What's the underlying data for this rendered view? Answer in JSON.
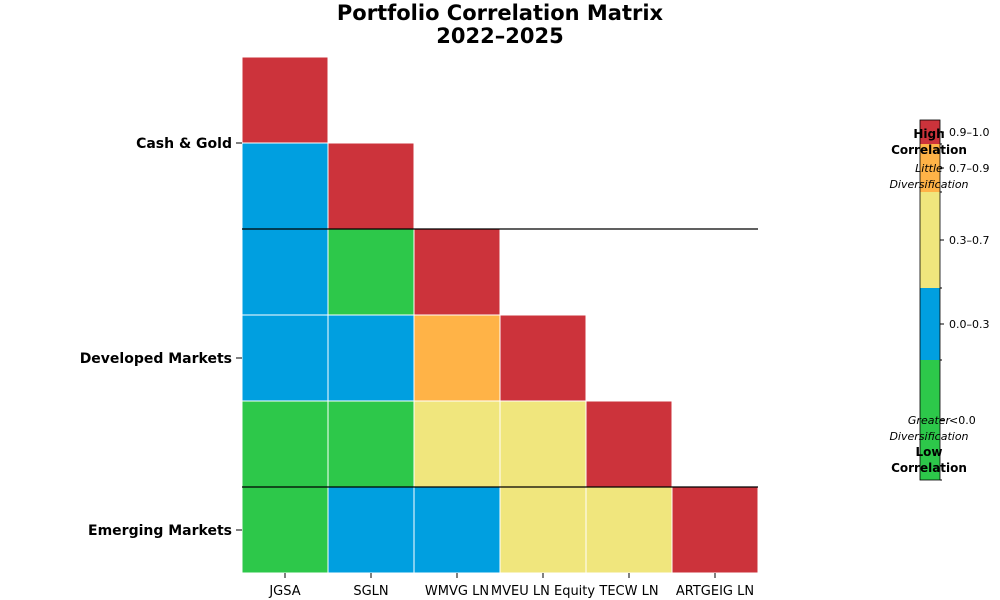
{
  "chart_data": {
    "type": "heatmap",
    "title": [
      "Portfolio Correlation Matrix",
      "2022–2025"
    ],
    "columns": [
      "JGSA",
      "SGLN",
      "WMVG LN",
      "MVEU LN Equity",
      "TECW LN",
      "ARTGEIG LN"
    ],
    "group_labels": [
      "Cash & Gold",
      "Developed Markets",
      "Emerging Markets"
    ],
    "group_rows": [
      [
        0,
        1
      ],
      [
        2,
        3,
        4
      ],
      [
        5
      ]
    ],
    "cells": [
      [
        "0.9–1.0",
        null,
        null,
        null,
        null,
        null
      ],
      [
        "0.0–0.3",
        "0.9–1.0",
        null,
        null,
        null,
        null
      ],
      [
        "0.0–0.3",
        "<0.0",
        "0.9–1.0",
        null,
        null,
        null
      ],
      [
        "0.0–0.3",
        "0.0–0.3",
        "0.7–0.9",
        "0.9–1.0",
        null,
        null
      ],
      [
        "<0.0",
        "<0.0",
        "0.3–0.7",
        "0.3–0.7",
        "0.9–1.0",
        null
      ],
      [
        "<0.0",
        "0.0–0.3",
        "0.0–0.3",
        "0.3–0.7",
        "0.3–0.7",
        "0.9–1.0"
      ]
    ],
    "legend": {
      "bins": [
        {
          "label": "0.9–1.0",
          "color": "#CC333B",
          "range": [
            0.9,
            1.0
          ]
        },
        {
          "label": "0.7–0.9",
          "color": "#FFB347",
          "range": [
            0.7,
            0.9
          ]
        },
        {
          "label": "0.3–0.7",
          "color": "#F0E67D",
          "range": [
            0.3,
            0.7
          ]
        },
        {
          "label": "0.0–0.3",
          "color": "#009FE0",
          "range": [
            0.0,
            0.3
          ]
        },
        {
          "label": "<0.0",
          "color": "#2DC84A",
          "range": [
            -0.5,
            0.0
          ]
        }
      ],
      "top_label": "High\nCorrelation",
      "top_note": "Little\nDiversification",
      "bottom_note": "Greater\nDiversification",
      "bottom_label": "Low\nCorrelation"
    }
  }
}
